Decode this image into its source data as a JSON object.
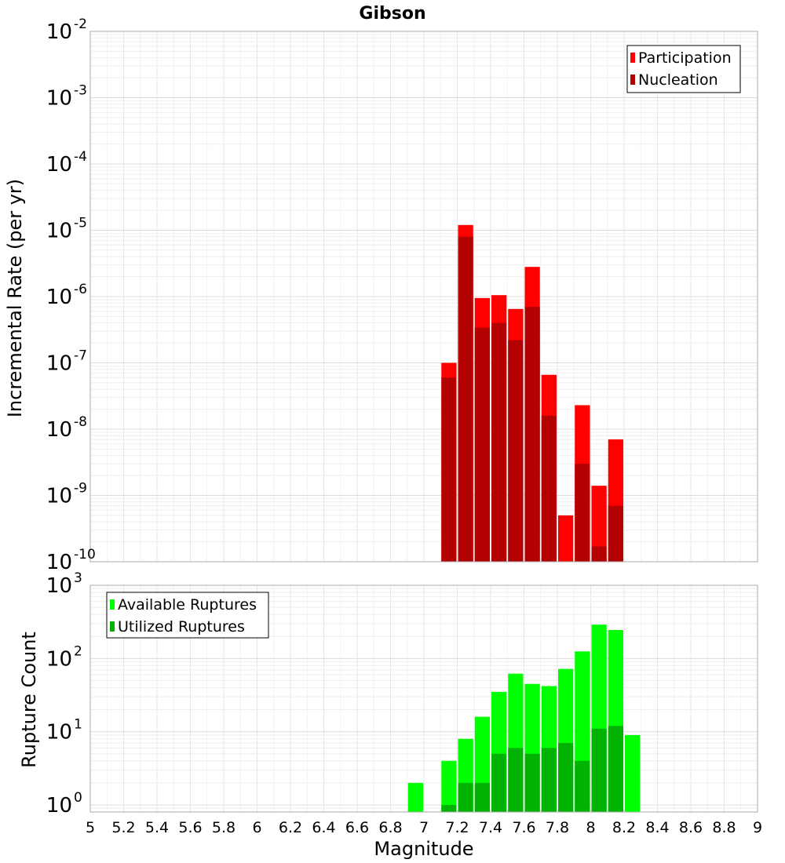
{
  "chart_data": [
    {
      "type": "bar",
      "title": "Gibson",
      "ylabel": "Incremental Rate (per yr)",
      "xlabel": "",
      "xlim": [
        5,
        9
      ],
      "ylim": [
        1e-10,
        0.01
      ],
      "yscale": "log",
      "grid": true,
      "legend_position": "top-right",
      "bar_width": 0.1,
      "series": [
        {
          "name": "Participation",
          "color": "#ff0000",
          "x": [
            7.15,
            7.25,
            7.35,
            7.45,
            7.55,
            7.65,
            7.75,
            7.85,
            7.95,
            8.05,
            8.15
          ],
          "values": [
            1e-07,
            1.2e-05,
            9.5e-07,
            1.05e-06,
            6.5e-07,
            2.8e-06,
            6.6e-08,
            5e-10,
            2.3e-08,
            1.4e-09,
            7e-09
          ]
        },
        {
          "name": "Nucleation",
          "color": "#b30000",
          "x": [
            7.15,
            7.25,
            7.35,
            7.45,
            7.55,
            7.65,
            7.75,
            7.85,
            7.95,
            8.05,
            8.15
          ],
          "values": [
            6e-08,
            8e-06,
            3.4e-07,
            4e-07,
            2.2e-07,
            7e-07,
            1.6e-08,
            null,
            3e-09,
            1.7e-10,
            7e-10
          ]
        }
      ],
      "ytick_exponents": [
        -10,
        -9,
        -8,
        -7,
        -6,
        -5,
        -4,
        -3,
        -2
      ]
    },
    {
      "type": "bar",
      "title": "",
      "ylabel": "Rupture Count",
      "xlabel": "Magnitude",
      "xlim": [
        5,
        9
      ],
      "ylim": [
        0.8,
        1000
      ],
      "yscale": "log",
      "grid": true,
      "legend_position": "top-left",
      "bar_width": 0.1,
      "series": [
        {
          "name": "Available Ruptures",
          "color": "#00ff00",
          "x": [
            6.95,
            7.15,
            7.25,
            7.35,
            7.45,
            7.55,
            7.65,
            7.75,
            7.85,
            7.95,
            8.05,
            8.15,
            8.25
          ],
          "values": [
            2,
            4,
            8,
            16,
            35,
            62,
            45,
            42,
            72,
            125,
            290,
            245,
            9
          ]
        },
        {
          "name": "Utilized Ruptures",
          "color": "#00b300",
          "x": [
            7.15,
            7.25,
            7.35,
            7.45,
            7.55,
            7.65,
            7.75,
            7.85,
            7.95,
            8.05,
            8.15
          ],
          "values": [
            1,
            2,
            2,
            5,
            6,
            5,
            6,
            7,
            4,
            11,
            12
          ]
        }
      ],
      "ytick_exponents": [
        0,
        1,
        2,
        3
      ]
    }
  ],
  "x_ticks": [
    "5",
    "5.2",
    "5.4",
    "5.6",
    "5.8",
    "6",
    "6.2",
    "6.4",
    "6.6",
    "6.8",
    "7",
    "7.2",
    "7.4",
    "7.6",
    "7.8",
    "8",
    "8.2",
    "8.4",
    "8.6",
    "8.8",
    "9"
  ]
}
